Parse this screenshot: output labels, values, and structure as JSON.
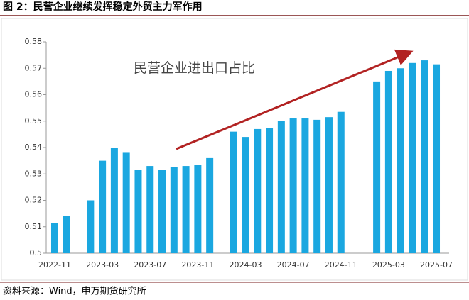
{
  "title": "图 2：民营企业继续发挥稳定外贸主力军作用",
  "source": "资料来源：Wind，申万期货研究所",
  "chart_data": {
    "type": "bar",
    "annotation": "民营企业进出口占比",
    "categories": [
      "2022-11",
      null,
      null,
      null,
      "2023-03",
      null,
      null,
      null,
      "2023-07",
      null,
      null,
      null,
      "2023-11",
      null,
      null,
      null,
      "2024-03",
      null,
      null,
      null,
      "2024-07",
      null,
      null,
      null,
      "2024-11",
      null,
      null,
      null,
      "2025-03",
      null,
      null,
      null,
      "2025-07"
    ],
    "values": [
      0.5115,
      0.514,
      null,
      0.52,
      0.535,
      0.54,
      0.538,
      0.5315,
      0.533,
      0.5315,
      0.5325,
      0.533,
      0.5335,
      0.536,
      null,
      0.546,
      0.544,
      0.547,
      0.5475,
      0.55,
      0.551,
      0.551,
      0.5505,
      0.5515,
      0.5535,
      null,
      null,
      0.565,
      0.569,
      0.57,
      0.572,
      0.573,
      0.5715
    ],
    "color": "#1aa7e0",
    "ylim": [
      0.5,
      0.58
    ],
    "yticks": [
      0.5,
      0.51,
      0.52,
      0.53,
      0.54,
      0.55,
      0.56,
      0.57,
      0.58
    ],
    "grid": false
  }
}
